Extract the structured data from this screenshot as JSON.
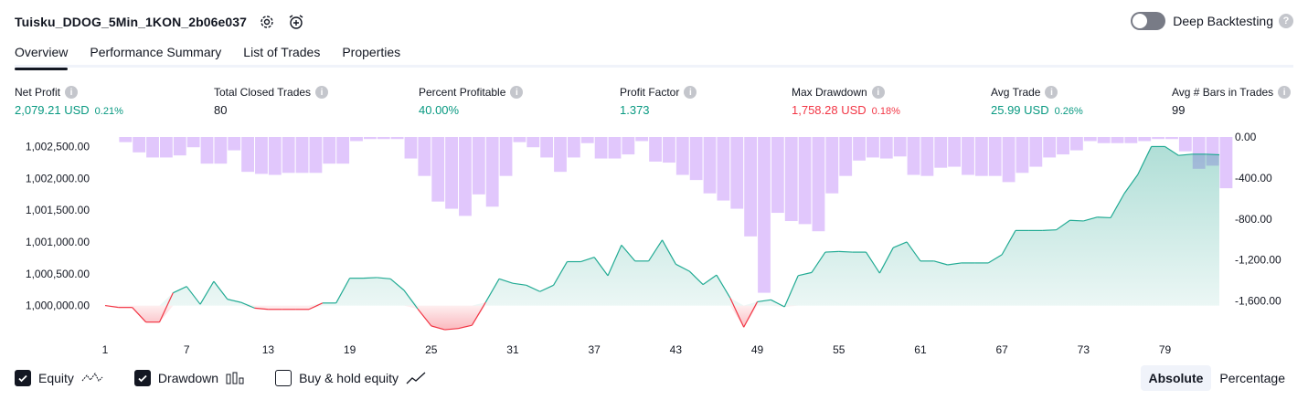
{
  "header": {
    "strategy_name": "Tuisku_DDOG_5Min_1KON_2b06e037",
    "settings_icon": "gear-icon",
    "alert_icon": "alarm-add-icon"
  },
  "deep_backtesting": {
    "label": "Deep Backtesting",
    "enabled": false,
    "help": "?"
  },
  "tabs": [
    {
      "label": "Overview",
      "active": true
    },
    {
      "label": "Performance Summary",
      "active": false
    },
    {
      "label": "List of Trades",
      "active": false
    },
    {
      "label": "Properties",
      "active": false
    }
  ],
  "metrics": [
    {
      "label": "Net Profit",
      "value": "2,079.21 USD",
      "pct": "0.21%",
      "color": "green"
    },
    {
      "label": "Total Closed Trades",
      "value": "80",
      "pct": "",
      "color": "plain"
    },
    {
      "label": "Percent Profitable",
      "value": "40.00%",
      "pct": "",
      "color": "green"
    },
    {
      "label": "Profit Factor",
      "value": "1.373",
      "pct": "",
      "color": "green"
    },
    {
      "label": "Max Drawdown",
      "value": "1,758.28 USD",
      "pct": "0.18%",
      "color": "red"
    },
    {
      "label": "Avg Trade",
      "value": "25.99 USD",
      "pct": "0.26%",
      "color": "green"
    },
    {
      "label": "Avg # Bars in Trades",
      "value": "99",
      "pct": "",
      "color": "plain"
    }
  ],
  "chart_data": {
    "type": "line",
    "left_axis": {
      "ticks": [
        "1,002,500.00",
        "1,002,000.00",
        "1,001,500.00",
        "1,001,000.00",
        "1,000,500.00",
        "1,000,000.00"
      ],
      "ticks_values": [
        1002500,
        1002000,
        1001500,
        1001000,
        1000500,
        1000000
      ],
      "ylim": [
        999750,
        1002650
      ]
    },
    "right_axis": {
      "ticks": [
        "0.00",
        "-400.00",
        "-800.00",
        "-1,200.00",
        "-1,600.00"
      ],
      "ticks_values": [
        0,
        -400,
        -800,
        -1200,
        -1600
      ],
      "ylim": [
        -1800,
        0
      ]
    },
    "x_ticks": [
      "1",
      "7",
      "13",
      "19",
      "25",
      "31",
      "37",
      "43",
      "49",
      "55",
      "61",
      "67",
      "73",
      "79"
    ],
    "x_ticks_values": [
      1,
      7,
      13,
      19,
      25,
      31,
      37,
      43,
      49,
      55,
      61,
      67,
      73,
      79
    ],
    "equity": {
      "name": "Equity",
      "baseline": 1000000,
      "values": [
        1000000,
        999970,
        999970,
        999740,
        999740,
        1000200,
        1000300,
        1000020,
        1000380,
        1000100,
        1000050,
        999960,
        999940,
        999940,
        999940,
        999940,
        1000040,
        1000040,
        1000430,
        1000430,
        1000440,
        1000420,
        1000240,
        999950,
        999680,
        999620,
        999640,
        999690,
        1000050,
        1000420,
        1000350,
        1000320,
        1000220,
        1000320,
        1000690,
        1000690,
        1000760,
        1000470,
        1000950,
        1000700,
        1000700,
        1001030,
        1000650,
        1000540,
        1000330,
        1000480,
        1000120,
        999660,
        1000060,
        1000090,
        999980,
        1000470,
        1000520,
        1000840,
        1000850,
        1000840,
        1000840,
        1000510,
        1000910,
        1001000,
        1000700,
        1000700,
        1000640,
        1000670,
        1000670,
        1000670,
        1000800,
        1001180,
        1001180,
        1001180,
        1001190,
        1001340,
        1001330,
        1001390,
        1001380,
        1001760,
        1002060,
        1002500,
        1002500,
        1002360,
        1002380,
        1002380,
        1002370
      ]
    },
    "drawdown": {
      "name": "Drawdown",
      "values": [
        0,
        -50,
        -150,
        -200,
        -200,
        -180,
        -100,
        -260,
        -260,
        -130,
        -340,
        -360,
        -370,
        -350,
        -350,
        -350,
        -260,
        -260,
        -40,
        -20,
        -20,
        -20,
        -210,
        -380,
        -630,
        -700,
        -770,
        -560,
        -680,
        -380,
        -50,
        -100,
        -200,
        -340,
        -200,
        -60,
        -210,
        -210,
        -170,
        -40,
        -240,
        -250,
        -370,
        -420,
        -550,
        -620,
        -700,
        -970,
        -1520,
        -740,
        -820,
        -850,
        -920,
        -550,
        -380,
        -230,
        -200,
        -210,
        -190,
        -370,
        -380,
        -300,
        -290,
        -370,
        -380,
        -380,
        -440,
        -350,
        -290,
        -200,
        -170,
        -130,
        -40,
        -60,
        -60,
        -60,
        -40,
        -20,
        -20,
        -140,
        -310,
        -280,
        -500
      ]
    },
    "grid": false,
    "legend": "bottom-left"
  },
  "legend": [
    {
      "label": "Equity",
      "checked": true,
      "icon": "equity-line-icon"
    },
    {
      "label": "Drawdown",
      "checked": true,
      "icon": "drawdown-bars-icon"
    },
    {
      "label": "Buy & hold equity",
      "checked": false,
      "icon": "buy-hold-line-icon"
    }
  ],
  "mode": [
    {
      "label": "Absolute",
      "active": true
    },
    {
      "label": "Percentage",
      "active": false
    }
  ]
}
